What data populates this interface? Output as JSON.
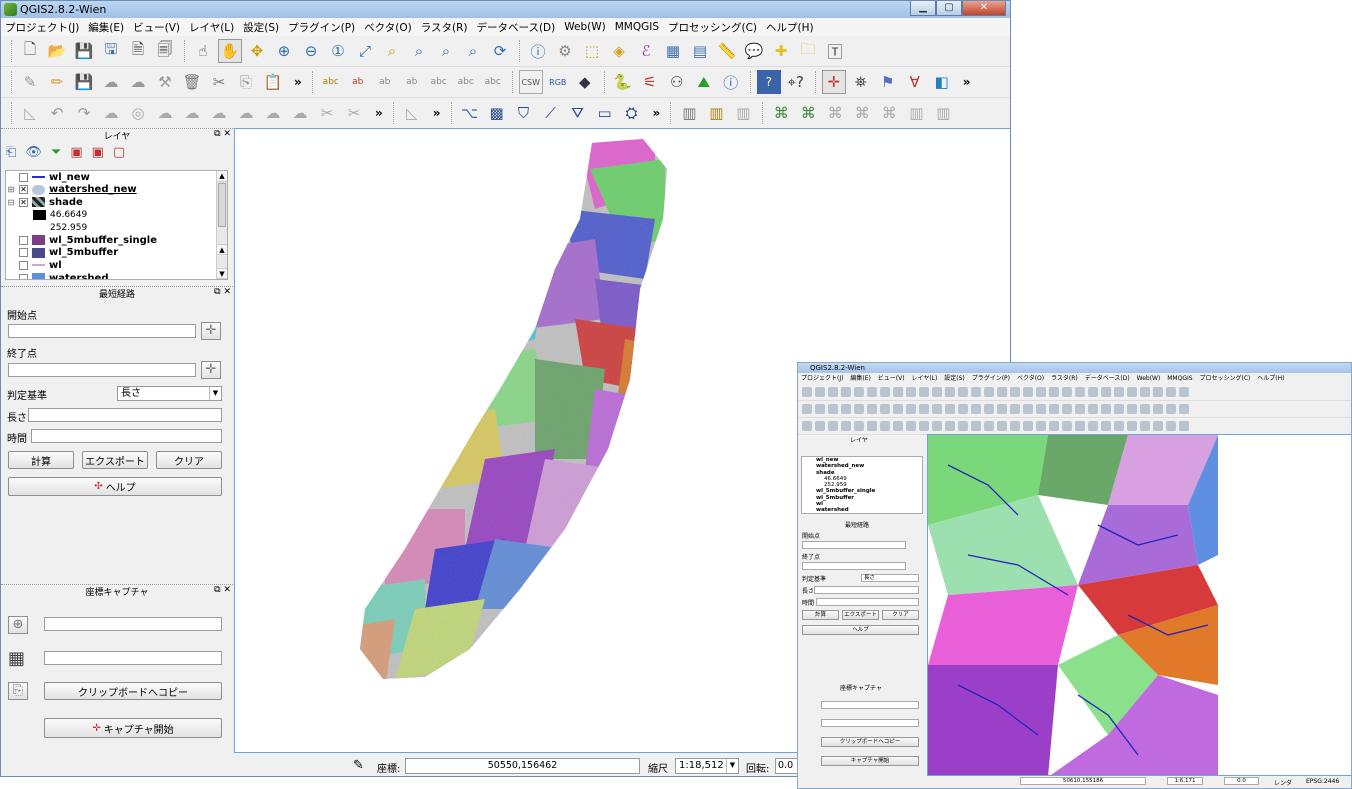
{
  "window": {
    "title": "QGIS2.8.2-Wien",
    "minimize": "▁",
    "maximize": "▢",
    "close": "✕"
  },
  "menu": [
    "プロジェクト(J)",
    "編集(E)",
    "ビュー(V)",
    "レイヤ(L)",
    "設定(S)",
    "プラグイン(P)",
    "ベクタ(O)",
    "ラスタ(R)",
    "データベース(D)",
    "Web(W)",
    "MMQGIS",
    "プロセッシング(C)",
    "ヘルプ(H)"
  ],
  "toolbar_more": "»",
  "layers_panel": {
    "title": "レイヤ",
    "float": "⧉",
    "close": "✕",
    "items": [
      {
        "name": "wl_new",
        "checked": false,
        "swatch": "#2b2bd6"
      },
      {
        "name": "watershed_new",
        "checked": true,
        "swatch": "#b8c8dc"
      },
      {
        "name": "shade",
        "checked": true,
        "swatch": "#333333"
      },
      {
        "name": "46.6649",
        "sub": true,
        "swatch": "#000000"
      },
      {
        "name": "252.959",
        "sub": true
      },
      {
        "name": "wl_5mbuffer_single",
        "checked": false,
        "swatch": "#7a3d86"
      },
      {
        "name": "wl_5mbuffer",
        "checked": false,
        "swatch": "#4a4a8a"
      },
      {
        "name": "wl",
        "checked": false,
        "swatch": "#c9a9c9"
      },
      {
        "name": "watershed",
        "checked": false,
        "swatch": "#5b8fe0"
      }
    ]
  },
  "shortest_path": {
    "title": "最短経路",
    "start_label": "開始点",
    "end_label": "終了点",
    "criterion_label": "判定基準",
    "criterion_value": "長さ",
    "length_label": "長さ",
    "time_label": "時間",
    "calc_button": "計算",
    "export_button": "エクスポート",
    "clear_button": "クリア",
    "help_button": "ヘルプ"
  },
  "coord_capture": {
    "title": "座標キャプチャ",
    "copy_button": "クリップボードへコピー",
    "start_button": "キャプチャ開始"
  },
  "status": {
    "coord_label": "座標:",
    "coord_value": "50550,156462",
    "scale_label": "縮尺",
    "scale_value": "1:18,512",
    "rotation_label": "回転:",
    "rotation_value": "0.0"
  },
  "inset": {
    "title": "QGIS2.8.2-Wien",
    "menu": [
      "プロジェクト(J)",
      "編集(E)",
      "ビュー(V)",
      "レイヤ(L)",
      "設定(S)",
      "プラグイン(P)",
      "ベクタ(O)",
      "ラスタ(R)",
      "データベース(D)",
      "Web(W)",
      "MMQGIS",
      "プロセッシング(C)",
      "ヘルプ(H)"
    ],
    "layers": [
      "wl_new",
      "watershed_new",
      "shade",
      "46.6649",
      "252.959",
      "wl_5mbuffer_single",
      "wl_5mbuffer",
      "wl",
      "watershed"
    ],
    "coord_value": "50610,155186",
    "scale_value": "1:6,171",
    "rotation_value": "0.0",
    "render_label": "レンダ",
    "crs_label": "EPSG:2446"
  }
}
